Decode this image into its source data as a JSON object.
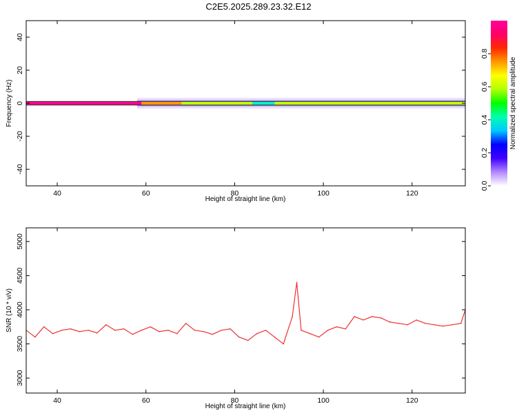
{
  "figure": {
    "title": "C2E5.2025.289.23.32.E12"
  },
  "chart_data": [
    {
      "type": "heatmap",
      "xlabel": "Height of straight line (km)",
      "ylabel": "Frequency (Hz)",
      "xlim": [
        33,
        132
      ],
      "ylim": [
        -50,
        50
      ],
      "xticks": [
        40,
        60,
        80,
        100,
        120
      ],
      "yticks": [
        -40,
        -20,
        0,
        20,
        40
      ],
      "colorbar": {
        "label": "Normalized spectral amplitude",
        "range": [
          0,
          1
        ],
        "ticks": [
          "0.0",
          "0.2",
          "0.4",
          "0.6",
          "0.8"
        ],
        "colors": [
          "#ffffff",
          "#b388ff",
          "#4000ff",
          "#0000ff",
          "#00c8ff",
          "#00ffb0",
          "#00ff00",
          "#b0ff00",
          "#ffff00",
          "#ff9900",
          "#ff2a00",
          "#ff0066",
          "#ff0099"
        ]
      },
      "bands": [
        {
          "segment": "33-59 km",
          "value": 0.98
        },
        {
          "segment": "59-68 km",
          "value": 0.75
        },
        {
          "segment": "68-84 km",
          "value": 0.6
        },
        {
          "segment": "84-89 km",
          "value": 0.4
        },
        {
          "segment": "89-132 km",
          "value": 0.6
        }
      ]
    },
    {
      "type": "line",
      "xlabel": "Height of straight line (km)",
      "ylabel": "SNR (10 * v/v)",
      "xlim": [
        33,
        132
      ],
      "ylim": [
        2780,
        5200
      ],
      "xticks": [
        40,
        60,
        80,
        100,
        120
      ],
      "yticks": [
        3000,
        3500,
        4000,
        4500,
        5000
      ],
      "series": [
        {
          "color": "#ee3030",
          "x": [
            33,
            35,
            37,
            39,
            41,
            43,
            45,
            47,
            49,
            51,
            53,
            55,
            57,
            59,
            61,
            63,
            65,
            67,
            69,
            71,
            73,
            75,
            77,
            79,
            81,
            83,
            85,
            87,
            89,
            91,
            93,
            94,
            95,
            97,
            99,
            101,
            103,
            105,
            107,
            109,
            111,
            113,
            115,
            117,
            119,
            121,
            123,
            125,
            127,
            129,
            131,
            132
          ],
          "y": [
            3700,
            3600,
            3750,
            3650,
            3700,
            3720,
            3680,
            3700,
            3660,
            3780,
            3700,
            3720,
            3640,
            3700,
            3750,
            3680,
            3700,
            3650,
            3800,
            3700,
            3680,
            3640,
            3700,
            3720,
            3600,
            3550,
            3650,
            3700,
            3600,
            3500,
            3900,
            4400,
            3700,
            3650,
            3600,
            3700,
            3750,
            3720,
            3900,
            3850,
            3900,
            3880,
            3820,
            3800,
            3780,
            3850,
            3800,
            3780,
            3760,
            3780,
            3800,
            4000
          ]
        }
      ]
    }
  ]
}
